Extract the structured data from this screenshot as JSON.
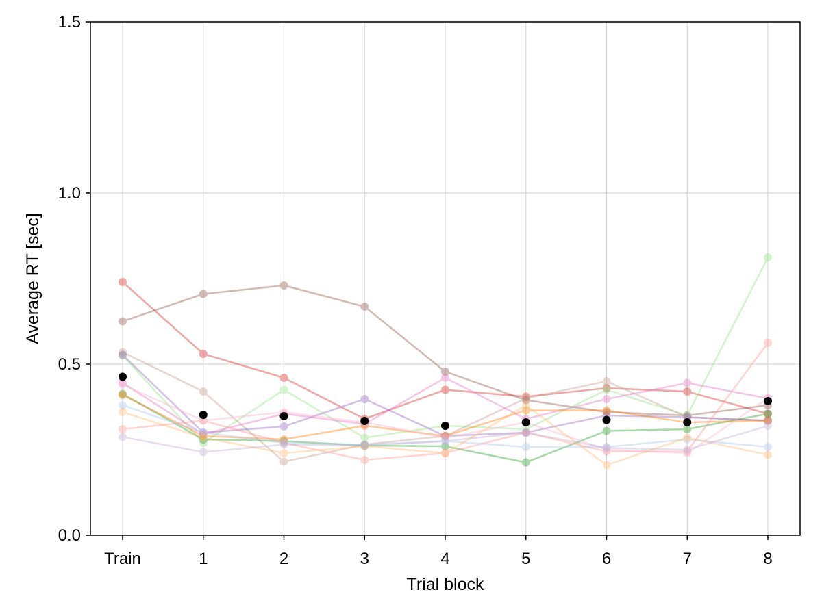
{
  "chart_data": {
    "type": "line",
    "title": "",
    "xlabel": "Trial block",
    "ylabel": "Average RT [sec]",
    "categories": [
      "Train",
      "1",
      "2",
      "3",
      "4",
      "5",
      "6",
      "7",
      "8"
    ],
    "yticks": [
      "0.0",
      "0.5",
      "1.0",
      "1.5"
    ],
    "ylim": [
      0,
      1.5
    ],
    "grid": true,
    "legend": "none",
    "series": [
      {
        "color": "#d62728",
        "opacity": 0.4,
        "values": [
          0.74,
          0.53,
          0.46,
          0.34,
          0.425,
          0.405,
          0.43,
          0.42,
          0.355
        ]
      },
      {
        "color": "#8c564b",
        "opacity": 0.4,
        "values": [
          0.625,
          0.705,
          0.73,
          0.668,
          0.478,
          0.395,
          0.36,
          0.35,
          0.38
        ]
      },
      {
        "color": "#98df8a",
        "opacity": 0.4,
        "values": [
          0.525,
          0.27,
          0.425,
          0.285,
          0.32,
          0.31,
          0.425,
          0.35,
          0.812
        ]
      },
      {
        "color": "#c49c94",
        "opacity": 0.4,
        "values": [
          0.535,
          0.42,
          0.215,
          0.265,
          0.29,
          0.4,
          0.45,
          0.345,
          0.335
        ]
      },
      {
        "color": "#9467bd",
        "opacity": 0.4,
        "values": [
          0.527,
          0.3,
          0.318,
          0.398,
          0.29,
          0.3,
          0.35,
          0.345,
          0.335
        ]
      },
      {
        "color": "#e377c2",
        "opacity": 0.4,
        "values": [
          0.445,
          0.295,
          0.355,
          0.325,
          0.46,
          0.34,
          0.398,
          0.445,
          0.4
        ]
      },
      {
        "color": "#2ca02c",
        "opacity": 0.4,
        "values": [
          0.413,
          0.28,
          0.275,
          0.262,
          0.26,
          0.213,
          0.305,
          0.31,
          0.355
        ]
      },
      {
        "color": "#ff7f0e",
        "opacity": 0.4,
        "values": [
          0.41,
          0.29,
          0.28,
          0.32,
          0.29,
          0.365,
          0.365,
          0.33,
          0.335
        ]
      },
      {
        "color": "#ff9896",
        "opacity": 0.4,
        "values": [
          0.31,
          0.335,
          0.27,
          0.22,
          0.24,
          0.3,
          0.245,
          0.245,
          0.562
        ]
      },
      {
        "color": "#f7b6d2",
        "opacity": 0.4,
        "values": [
          0.44,
          0.335,
          0.36,
          0.33,
          0.285,
          0.33,
          0.25,
          0.24,
          0.4
        ]
      },
      {
        "color": "#aec7e8",
        "opacity": 0.4,
        "values": [
          0.38,
          0.3,
          0.27,
          0.265,
          0.275,
          0.258,
          0.258,
          0.28,
          0.258
        ]
      },
      {
        "color": "#ffbb78",
        "opacity": 0.4,
        "values": [
          0.36,
          0.285,
          0.24,
          0.26,
          0.24,
          0.38,
          0.205,
          0.285,
          0.235
        ]
      },
      {
        "color": "#c5b0d5",
        "opacity": 0.4,
        "values": [
          0.287,
          0.243,
          0.265,
          0.262,
          0.275,
          0.3,
          0.255,
          0.25,
          0.32
        ]
      },
      {
        "color": "#000000",
        "opacity": 1.0,
        "line": false,
        "values": [
          0.463,
          0.352,
          0.348,
          0.334,
          0.32,
          0.33,
          0.337,
          0.33,
          0.392
        ]
      }
    ]
  }
}
